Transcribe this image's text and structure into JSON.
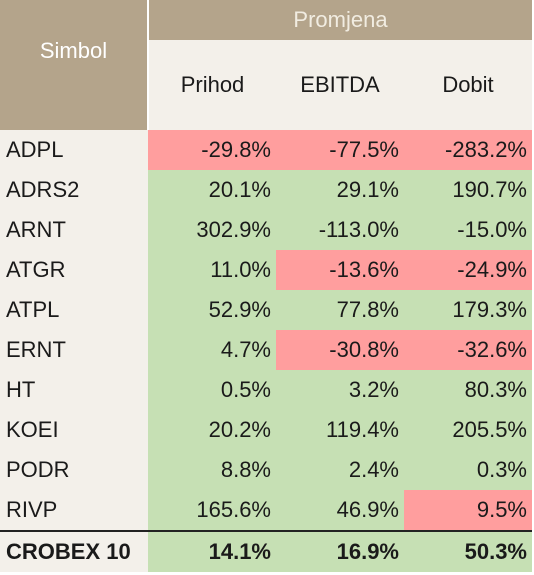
{
  "header": {
    "symbol_label": "Simbol",
    "change_label": "Promjena",
    "columns": [
      "Prihod",
      "EBITDA",
      "Dobit"
    ]
  },
  "rows": [
    {
      "symbol": "ADPL",
      "values": [
        "-29.8%",
        "-77.5%",
        "-283.2%"
      ],
      "status": [
        "neg",
        "neg",
        "neg"
      ]
    },
    {
      "symbol": "ADRS2",
      "values": [
        "20.1%",
        "29.1%",
        "190.7%"
      ],
      "status": [
        "pos",
        "pos",
        "pos"
      ]
    },
    {
      "symbol": "ARNT",
      "values": [
        "302.9%",
        "-113.0%",
        "-15.0%"
      ],
      "status": [
        "pos",
        "pos",
        "pos"
      ]
    },
    {
      "symbol": "ATGR",
      "values": [
        "11.0%",
        "-13.6%",
        "-24.9%"
      ],
      "status": [
        "pos",
        "neg",
        "neg"
      ]
    },
    {
      "symbol": "ATPL",
      "values": [
        "52.9%",
        "77.8%",
        "179.3%"
      ],
      "status": [
        "pos",
        "pos",
        "pos"
      ]
    },
    {
      "symbol": "ERNT",
      "values": [
        "4.7%",
        "-30.8%",
        "-32.6%"
      ],
      "status": [
        "pos",
        "neg",
        "neg"
      ]
    },
    {
      "symbol": "HT",
      "values": [
        "0.5%",
        "3.2%",
        "80.3%"
      ],
      "status": [
        "pos",
        "pos",
        "pos"
      ]
    },
    {
      "symbol": "KOEI",
      "values": [
        "20.2%",
        "119.4%",
        "205.5%"
      ],
      "status": [
        "pos",
        "pos",
        "pos"
      ]
    },
    {
      "symbol": "PODR",
      "values": [
        "8.8%",
        "2.4%",
        "0.3%"
      ],
      "status": [
        "pos",
        "pos",
        "pos"
      ]
    },
    {
      "symbol": "RIVP",
      "values": [
        "165.6%",
        "46.9%",
        "9.5%"
      ],
      "status": [
        "pos",
        "pos",
        "neg"
      ]
    }
  ],
  "total": {
    "symbol": "CROBEX 10",
    "values": [
      "14.1%",
      "16.9%",
      "50.3%"
    ]
  },
  "colors": {
    "header_bg": "#b4a48b",
    "subheader_bg": "#f3f0ea",
    "positive_bg": "#c6e0b4",
    "negative_bg": "#ff9e9e"
  }
}
